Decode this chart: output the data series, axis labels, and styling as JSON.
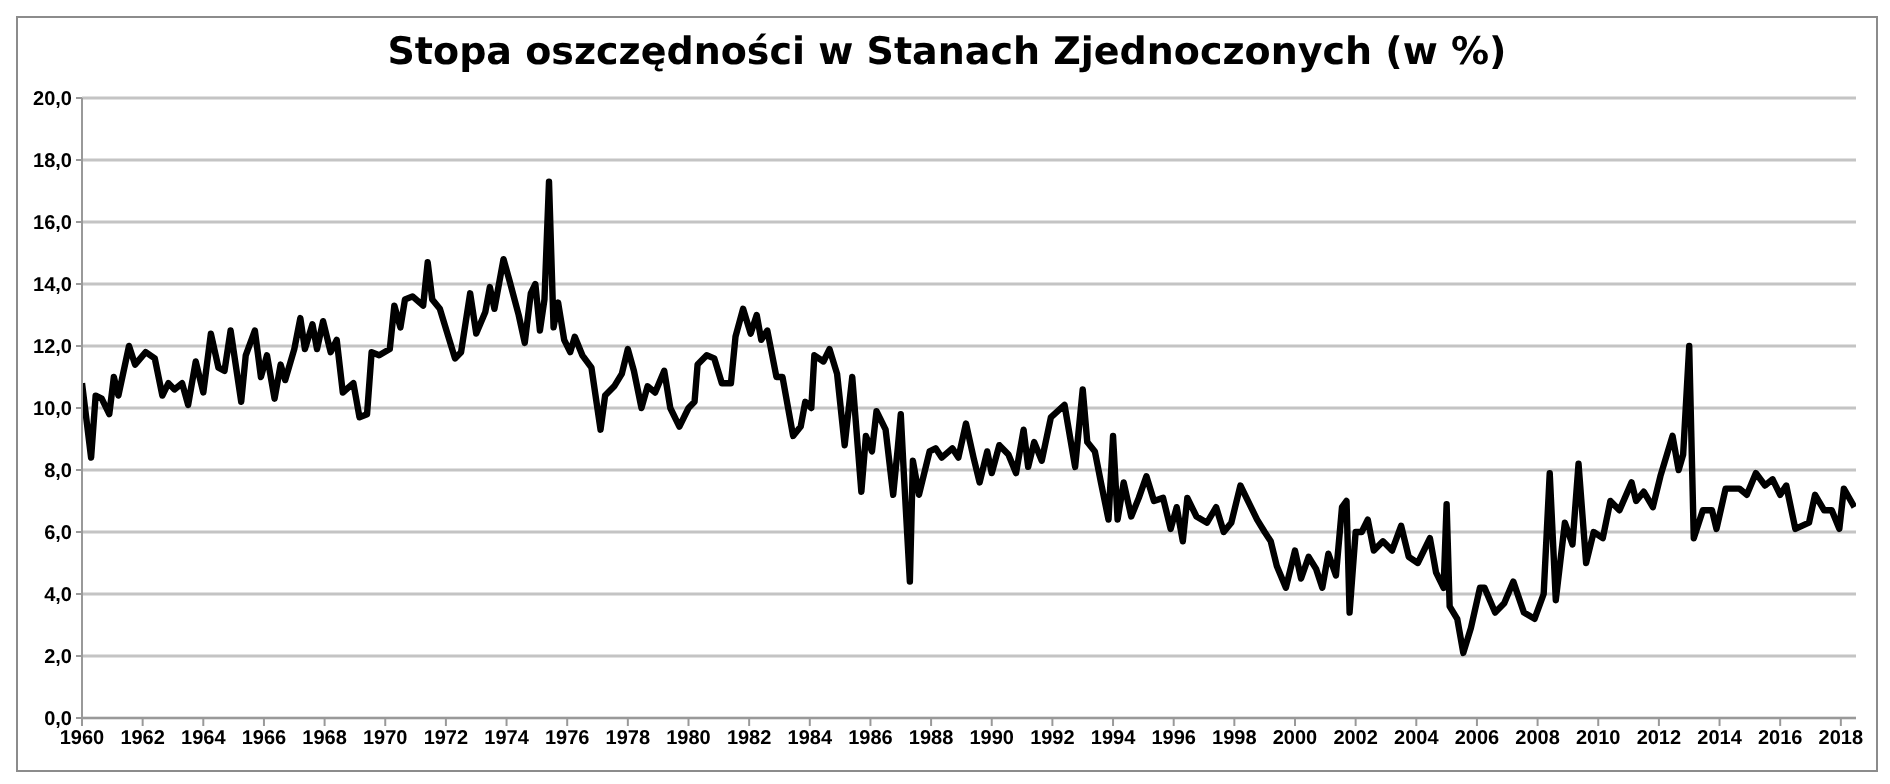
{
  "chart_data": {
    "type": "line",
    "title": "Stopa oszczędności w Stanach Zjednoczonych (w %)",
    "xlim": [
      1960,
      2018.5
    ],
    "xticks": [
      1960,
      1962,
      1964,
      1966,
      1968,
      1970,
      1972,
      1974,
      1976,
      1978,
      1980,
      1982,
      1984,
      1986,
      1988,
      1990,
      1992,
      1994,
      1996,
      1998,
      2000,
      2002,
      2004,
      2006,
      2008,
      2010,
      2012,
      2014,
      2016,
      2018
    ],
    "ylim": [
      0,
      20
    ],
    "yticks": [
      {
        "value": 0,
        "label": "0,0"
      },
      {
        "value": 2,
        "label": "2,0"
      },
      {
        "value": 4,
        "label": "4,0"
      },
      {
        "value": 6,
        "label": "6,0"
      },
      {
        "value": 8,
        "label": "8,0"
      },
      {
        "value": 10,
        "label": "10,0"
      },
      {
        "value": 12,
        "label": "12,0"
      },
      {
        "value": 14,
        "label": "14,0"
      },
      {
        "value": 16,
        "label": "16,0"
      },
      {
        "value": 18,
        "label": "18,0"
      },
      {
        "value": 20,
        "label": "20,0"
      }
    ],
    "grid": "y",
    "legend": false,
    "marker": "none",
    "line_style": "solid",
    "series": [
      {
        "color": "#000000",
        "x": [
          1960.0,
          1960.3,
          1960.45,
          1960.65,
          1960.9,
          1961.05,
          1961.2,
          1961.55,
          1961.75,
          1962.1,
          1962.4,
          1962.65,
          1962.85,
          1963.05,
          1963.3,
          1963.5,
          1963.75,
          1964.0,
          1964.25,
          1964.5,
          1964.7,
          1964.9,
          1965.25,
          1965.4,
          1965.7,
          1965.9,
          1966.1,
          1966.35,
          1966.55,
          1966.7,
          1967.0,
          1967.2,
          1967.35,
          1967.6,
          1967.75,
          1967.95,
          1968.2,
          1968.4,
          1968.6,
          1968.95,
          1969.15,
          1969.4,
          1969.55,
          1969.8,
          1970.15,
          1970.3,
          1970.5,
          1970.65,
          1970.9,
          1971.25,
          1971.4,
          1971.55,
          1971.8,
          1972.05,
          1972.3,
          1972.5,
          1972.8,
          1973.0,
          1973.3,
          1973.45,
          1973.6,
          1973.9,
          1974.1,
          1974.4,
          1974.6,
          1974.8,
          1974.95,
          1975.1,
          1975.25,
          1975.4,
          1975.55,
          1975.7,
          1975.9,
          1976.1,
          1976.25,
          1976.5,
          1976.8,
          1977.1,
          1977.25,
          1977.55,
          1977.8,
          1978.0,
          1978.2,
          1978.45,
          1978.65,
          1978.9,
          1979.2,
          1979.4,
          1979.7,
          1980.0,
          1980.2,
          1980.3,
          1980.6,
          1980.85,
          1981.1,
          1981.4,
          1981.55,
          1981.8,
          1982.05,
          1982.25,
          1982.4,
          1982.6,
          1982.9,
          1983.1,
          1983.45,
          1983.7,
          1983.85,
          1984.05,
          1984.15,
          1984.45,
          1984.65,
          1984.9,
          1985.15,
          1985.4,
          1985.7,
          1985.85,
          1986.05,
          1986.2,
          1986.5,
          1986.75,
          1986.9,
          1987.0,
          1987.1,
          1987.3,
          1987.4,
          1987.6,
          1987.95,
          1988.15,
          1988.35,
          1988.7,
          1988.9,
          1989.15,
          1989.4,
          1989.6,
          1989.85,
          1990.0,
          1990.25,
          1990.55,
          1990.8,
          1991.05,
          1991.2,
          1991.4,
          1991.65,
          1991.95,
          1992.4,
          1992.75,
          1993.0,
          1993.15,
          1993.4,
          1993.6,
          1993.85,
          1994.0,
          1994.15,
          1994.35,
          1994.6,
          1994.85,
          1995.1,
          1995.35,
          1995.65,
          1995.9,
          1996.1,
          1996.3,
          1996.45,
          1996.75,
          1997.1,
          1997.4,
          1997.65,
          1997.9,
          1998.2,
          1998.5,
          1998.75,
          1999.0,
          1999.2,
          1999.4,
          1999.7,
          2000.0,
          2000.2,
          2000.45,
          2000.7,
          2000.9,
          2001.1,
          2001.35,
          2001.55,
          2001.7,
          2001.8,
          2002.0,
          2002.2,
          2002.4,
          2002.6,
          2002.9,
          2003.2,
          2003.5,
          2003.75,
          2004.05,
          2004.45,
          2004.65,
          2004.9,
          2005.0,
          2005.1,
          2005.35,
          2005.55,
          2005.8,
          2006.1,
          2006.25,
          2006.6,
          2006.9,
          2007.2,
          2007.55,
          2007.9,
          2008.2,
          2008.4,
          2008.6,
          2008.9,
          2009.15,
          2009.35,
          2009.6,
          2009.85,
          2010.15,
          2010.4,
          2010.7,
          2011.1,
          2011.25,
          2011.5,
          2011.8,
          2012.05,
          2012.45,
          2012.65,
          2012.8,
          2013.0,
          2013.15,
          2013.45,
          2013.75,
          2013.9,
          2014.2,
          2014.65,
          2014.9,
          2015.2,
          2015.5,
          2015.75,
          2016.0,
          2016.2,
          2016.5,
          2016.95,
          2017.15,
          2017.45,
          2017.7,
          2017.95,
          2018.1,
          2018.45
        ],
        "values": [
          10.8,
          8.4,
          10.4,
          10.3,
          9.8,
          11.0,
          10.4,
          12.0,
          11.4,
          11.8,
          11.6,
          10.4,
          10.8,
          10.6,
          10.8,
          10.1,
          11.5,
          10.5,
          12.4,
          11.3,
          11.2,
          12.5,
          10.2,
          11.7,
          12.5,
          11.0,
          11.7,
          10.3,
          11.4,
          10.9,
          11.9,
          12.9,
          11.9,
          12.7,
          11.9,
          12.8,
          11.8,
          12.2,
          10.5,
          10.8,
          9.7,
          9.8,
          11.8,
          11.7,
          11.9,
          13.3,
          12.6,
          13.5,
          13.6,
          13.3,
          14.7,
          13.5,
          13.2,
          12.4,
          11.6,
          11.8,
          13.7,
          12.4,
          13.1,
          13.9,
          13.2,
          14.8,
          14.1,
          13.0,
          12.1,
          13.7,
          14.0,
          12.5,
          13.5,
          17.3,
          12.6,
          13.4,
          12.2,
          11.8,
          12.3,
          11.7,
          11.3,
          9.3,
          10.4,
          10.7,
          11.1,
          11.9,
          11.2,
          10.0,
          10.7,
          10.5,
          11.2,
          10.0,
          9.4,
          10.0,
          10.2,
          11.4,
          11.7,
          11.6,
          10.8,
          10.8,
          12.3,
          13.2,
          12.4,
          13.0,
          12.2,
          12.5,
          11.0,
          11.0,
          9.1,
          9.4,
          10.2,
          10.0,
          11.7,
          11.5,
          11.9,
          11.1,
          8.8,
          11.0,
          7.3,
          9.1,
          8.6,
          9.9,
          9.3,
          7.2,
          8.7,
          9.8,
          7.9,
          4.4,
          8.3,
          7.2,
          8.6,
          8.7,
          8.4,
          8.7,
          8.4,
          9.5,
          8.4,
          7.6,
          8.6,
          7.9,
          8.8,
          8.5,
          7.9,
          9.3,
          8.1,
          8.9,
          8.3,
          9.7,
          10.1,
          8.1,
          10.6,
          8.9,
          8.6,
          7.6,
          6.4,
          9.1,
          6.4,
          7.6,
          6.5,
          7.1,
          7.8,
          7.0,
          7.1,
          6.1,
          6.8,
          5.7,
          7.1,
          6.5,
          6.3,
          6.8,
          6.0,
          6.3,
          7.5,
          6.9,
          6.4,
          6.0,
          5.7,
          4.9,
          4.2,
          5.4,
          4.5,
          5.2,
          4.8,
          4.2,
          5.3,
          4.6,
          6.8,
          7.0,
          3.4,
          6.0,
          6.0,
          6.4,
          5.4,
          5.7,
          5.4,
          6.2,
          5.2,
          5.0,
          5.8,
          4.7,
          4.2,
          6.9,
          3.6,
          3.2,
          2.1,
          2.9,
          4.2,
          4.2,
          3.4,
          3.7,
          4.4,
          3.4,
          3.2,
          4.0,
          7.9,
          3.8,
          6.3,
          5.6,
          8.2,
          5.0,
          6.0,
          5.8,
          7.0,
          6.7,
          7.6,
          7.0,
          7.3,
          6.8,
          7.8,
          9.1,
          8.0,
          8.5,
          12.0,
          5.8,
          6.7,
          6.7,
          6.1,
          7.4,
          7.4,
          7.2,
          7.9,
          7.5,
          7.7,
          7.2,
          7.5,
          6.1,
          6.3,
          7.2,
          6.7,
          6.7,
          6.1,
          7.4,
          6.8
        ]
      }
    ]
  }
}
